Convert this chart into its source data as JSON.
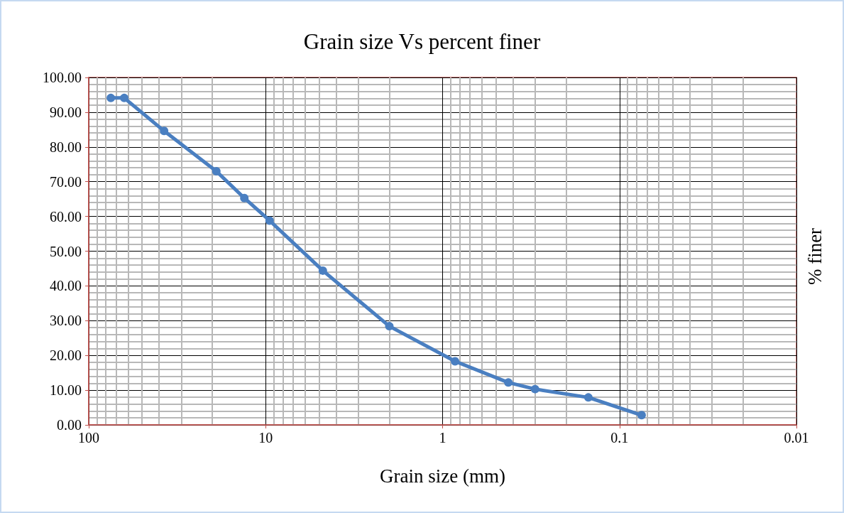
{
  "chart_data": {
    "type": "line",
    "title": "Grain size Vs percent finer",
    "xlabel": "Grain size (mm)",
    "ylabel": "% finer",
    "x": [
      75,
      63,
      37.5,
      19,
      13.2,
      9.5,
      4.75,
      2,
      0.85,
      0.425,
      0.3,
      0.15,
      0.075
    ],
    "series": [
      {
        "color": "#4a7fc1",
        "values": [
          94.1,
          94.1,
          84.6,
          73.0,
          65.3,
          58.8,
          44.4,
          28.4,
          18.3,
          12.2,
          10.3,
          7.9,
          2.8
        ]
      }
    ],
    "xlim": [
      100,
      0.01
    ],
    "xticks": [
      100,
      10,
      1,
      0.1,
      0.01
    ],
    "log": "x",
    "ylim": [
      0,
      100
    ],
    "yticks": [
      {
        "value": 0,
        "label": "0.00"
      },
      {
        "value": 10,
        "label": "10.00"
      },
      {
        "value": 20,
        "label": "20.00"
      },
      {
        "value": 30,
        "label": "30.00"
      },
      {
        "value": 40,
        "label": "40.00"
      },
      {
        "value": 50,
        "label": "50.00"
      },
      {
        "value": 60,
        "label": "60.00"
      },
      {
        "value": 70,
        "label": "70.00"
      },
      {
        "value": 80,
        "label": "80.00"
      },
      {
        "value": 90,
        "label": "90.00"
      },
      {
        "value": 100,
        "label": "100.00"
      }
    ],
    "grid": true,
    "marker": "circle",
    "line_style": "solid"
  }
}
